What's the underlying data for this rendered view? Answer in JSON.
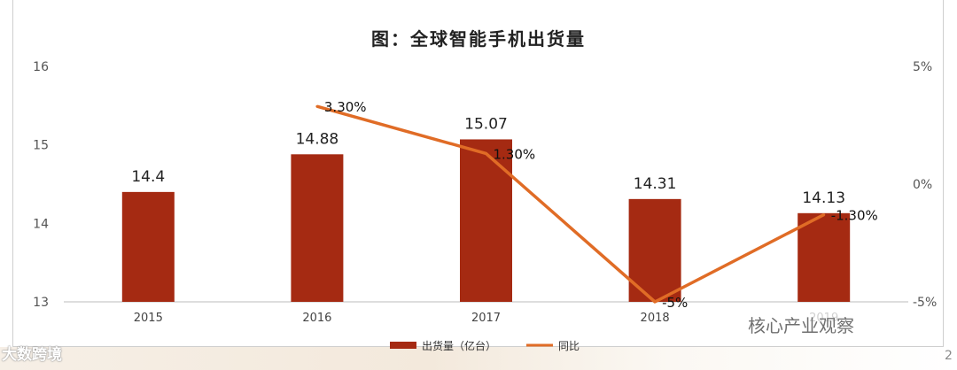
{
  "title": "图：全球智能手机出货量",
  "watermarks": {
    "left": "大数跨境",
    "right": "核心产业观察"
  },
  "page_number": "2",
  "colors": {
    "bar": "#A52A12",
    "line": "#E06C26"
  },
  "chart_data": {
    "type": "bar",
    "categories": [
      "2015",
      "2016",
      "2017",
      "2018",
      "2019"
    ],
    "category_labels": [
      "2015",
      "2016",
      "2017",
      "2018",
      "2019"
    ],
    "series": [
      {
        "name": "出货量（亿台）",
        "type": "bar",
        "axis": "left",
        "values": [
          14.4,
          14.88,
          15.07,
          14.31,
          14.13
        ],
        "labels": [
          "14.4",
          "14.88",
          "15.07",
          "14.31",
          "14.13"
        ]
      },
      {
        "name": "同比",
        "type": "line",
        "axis": "right",
        "values": [
          null,
          3.3,
          1.3,
          -5,
          -1.3
        ],
        "labels": [
          "",
          "3.30%",
          "1.30%",
          "-5%",
          "-1.30%"
        ]
      }
    ],
    "ylim": [
      13,
      16
    ],
    "y_ticks": [
      "13",
      "14",
      "15",
      "16"
    ],
    "y2lim": [
      -5,
      5
    ],
    "y2_ticks": [
      "-5%",
      "0%",
      "5%"
    ],
    "legend_position": "bottom-center",
    "grid": false
  }
}
